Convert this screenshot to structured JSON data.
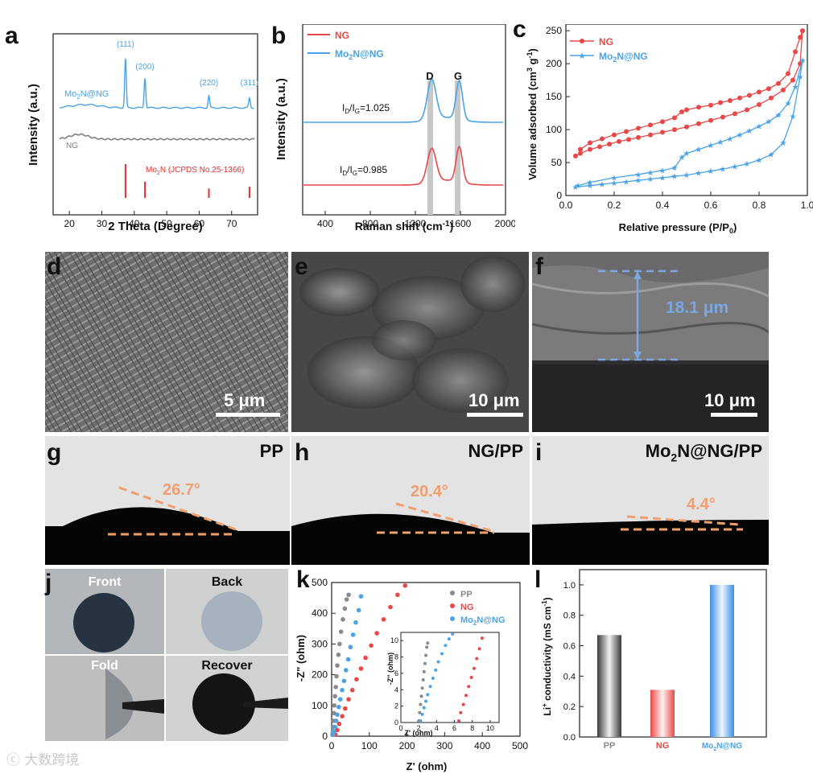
{
  "panels": {
    "a": "a",
    "b": "b",
    "c": "c",
    "d": "d",
    "e": "e",
    "f": "f",
    "g": "g",
    "h": "h",
    "i": "i",
    "j": "j",
    "k": "k",
    "l": "l"
  },
  "xrd": {
    "xlabel": "2 Theta (Degree)",
    "ylabel": "Intensity (a.u.)",
    "xticks": [
      "20",
      "30",
      "40",
      "50",
      "60",
      "70"
    ],
    "mo2n_label_pre": "Mo",
    "mo2n_label_sub": "2",
    "mo2n_label_post": "N@NG",
    "ng_label": "NG",
    "peaks": [
      "(111)",
      "(200)",
      "(220)",
      "(311)"
    ],
    "ref_pre": "Mo",
    "ref_sub": "2",
    "ref_post": "N (JCPDS No.25-1366)"
  },
  "raman": {
    "xlabel_pre": "Raman shift (cm",
    "xlabel_sup": "-1",
    "xlabel_post": ")",
    "ylabel": "Intensity (a.u.)",
    "xticks": [
      "400",
      "800",
      "1200",
      "1600",
      "2000"
    ],
    "legend_ng": "NG",
    "legend_mo_pre": "Mo",
    "legend_mo_sub": "2",
    "legend_mo_post": "N@NG",
    "d_label": "D",
    "g_label": "G",
    "ratio_top_pre": "I",
    "ratio_top_d": "D",
    "ratio_top_mid": "/I",
    "ratio_top_g": "G",
    "ratio_top_val": "=1.025",
    "ratio_bot_pre": "I",
    "ratio_bot_d": "D",
    "ratio_bot_mid": "/I",
    "ratio_bot_g": "G",
    "ratio_bot_val": "=0.985"
  },
  "bet": {
    "xlabel_pre": "Relative pressure (P/P",
    "xlabel_sub": "0",
    "xlabel_post": ")",
    "ylabel_pre": "Volume adsorbed (cm",
    "ylabel_sup1": "3",
    "ylabel_mid": " g",
    "ylabel_sup2": "-1",
    "ylabel_post": ")",
    "xticks": [
      "0.0",
      "0.2",
      "0.4",
      "0.6",
      "0.8",
      "1.0"
    ],
    "yticks": [
      "0",
      "50",
      "100",
      "150",
      "200",
      "250"
    ],
    "legend_ng": "NG",
    "legend_mo_pre": "Mo",
    "legend_mo_sub": "2",
    "legend_mo_post": "N@NG"
  },
  "sem": {
    "d_scale": "5 μm",
    "e_scale": "10 μm",
    "f_scale": "10 μm",
    "f_thickness": "18.1 μm"
  },
  "contact_angle": {
    "g_title": "PP",
    "g_angle": "26.7°",
    "h_title": "NG/PP",
    "h_angle": "20.4°",
    "i_title_pre": "Mo",
    "i_title_sub": "2",
    "i_title_post": "N@NG/PP",
    "i_angle": "4.4°"
  },
  "photos": {
    "front": "Front",
    "back": "Back",
    "fold": "Fold",
    "recover": "Recover"
  },
  "eis": {
    "xlabel": "Z' (ohm)",
    "ylabel": "-Z\" (ohm)",
    "xticks": [
      "0",
      "100",
      "200",
      "300",
      "400",
      "500"
    ],
    "yticks": [
      "0",
      "100",
      "200",
      "300",
      "400",
      "500"
    ],
    "legend_pp": "PP",
    "legend_ng": "NG",
    "legend_mo_pre": "Mo",
    "legend_mo_sub": "2",
    "legend_mo_post": "N@NG",
    "inset_xlabel": "Z' (ohm)",
    "inset_ylabel": "-Z\" (ohm)",
    "inset_xticks": [
      "0",
      "2",
      "4",
      "6",
      "8",
      "10"
    ],
    "inset_yticks": [
      "0",
      "2",
      "4",
      "6",
      "8",
      "10"
    ]
  },
  "cond": {
    "ylabel_pre": "Li",
    "ylabel_sup": "+",
    "ylabel_post": " conductivity (mS cm",
    "ylabel_sup2": "-1",
    "ylabel_end": ")",
    "yticks": [
      "0.0",
      "0.2",
      "0.4",
      "0.6",
      "0.8",
      "1.0"
    ],
    "cat_pp": "PP",
    "cat_ng": "NG",
    "cat_mo_pre": "Mo",
    "cat_mo_sub": "2",
    "cat_mo_post": "N@NG"
  },
  "watermark": "大数跨境",
  "chart_data": [
    {
      "id": "a",
      "type": "line",
      "title": "",
      "xlabel": "2 Theta (Degree)",
      "ylabel": "Intensity (a.u.)",
      "xlim": [
        15,
        78
      ],
      "series": [
        {
          "name": "Mo2N@NG",
          "color": "#4aa3e6"
        },
        {
          "name": "NG",
          "color": "#808080"
        }
      ],
      "peaks": [
        {
          "label": "(111)",
          "x": 37.3
        },
        {
          "label": "(200)",
          "x": 43.3
        },
        {
          "label": "(220)",
          "x": 63.0
        },
        {
          "label": "(311)",
          "x": 75.5
        }
      ],
      "reference": {
        "name": "Mo2N (JCPDS No.25-1366)",
        "x": [
          37.3,
          43.3,
          63.0,
          75.5
        ],
        "rel_intensity": [
          1.0,
          0.48,
          0.28,
          0.33
        ],
        "color": "#e03030"
      }
    },
    {
      "id": "b",
      "type": "line",
      "xlabel": "Raman shift (cm-1)",
      "ylabel": "Intensity (a.u.)",
      "xlim": [
        200,
        2000
      ],
      "bands": {
        "D": 1345,
        "G": 1590
      },
      "series": [
        {
          "name": "NG",
          "color": "#e84848",
          "ID_IG": 0.985
        },
        {
          "name": "Mo2N@NG",
          "color": "#4aa3e6",
          "ID_IG": 1.025
        }
      ]
    },
    {
      "id": "c",
      "type": "line",
      "xlabel": "Relative pressure (P/P0)",
      "ylabel": "Volume adsorbed (cm3 g-1)",
      "xlim": [
        0,
        1.0
      ],
      "ylim": [
        0,
        260
      ],
      "series": [
        {
          "name": "NG adsorption",
          "color": "#e84848",
          "x": [
            0.04,
            0.06,
            0.1,
            0.14,
            0.18,
            0.22,
            0.26,
            0.3,
            0.35,
            0.4,
            0.45,
            0.5,
            0.55,
            0.6,
            0.65,
            0.7,
            0.75,
            0.8,
            0.85,
            0.9,
            0.94,
            0.97,
            0.98
          ],
          "y": [
            60,
            64,
            70,
            74,
            78,
            82,
            85,
            88,
            92,
            96,
            100,
            104,
            109,
            114,
            119,
            124,
            130,
            138,
            148,
            160,
            175,
            200,
            250
          ]
        },
        {
          "name": "NG desorption",
          "color": "#e84848",
          "x": [
            0.98,
            0.97,
            0.95,
            0.92,
            0.88,
            0.84,
            0.8,
            0.76,
            0.72,
            0.68,
            0.64,
            0.6,
            0.55,
            0.5,
            0.48,
            0.45,
            0.4,
            0.35,
            0.3,
            0.25,
            0.2,
            0.15,
            0.1,
            0.06
          ],
          "y": [
            250,
            240,
            218,
            185,
            170,
            162,
            157,
            152,
            148,
            144,
            141,
            137,
            134,
            130,
            127,
            118,
            112,
            107,
            102,
            97,
            92,
            86,
            80,
            70
          ]
        },
        {
          "name": "Mo2N@NG adsorption",
          "color": "#4aa3e6",
          "x": [
            0.04,
            0.1,
            0.15,
            0.2,
            0.25,
            0.3,
            0.35,
            0.4,
            0.45,
            0.5,
            0.55,
            0.6,
            0.65,
            0.7,
            0.75,
            0.8,
            0.85,
            0.9,
            0.94,
            0.97,
            0.98
          ],
          "y": [
            13,
            15,
            17,
            19,
            21,
            23,
            25,
            27,
            29,
            31,
            34,
            37,
            40,
            44,
            48,
            54,
            62,
            80,
            120,
            180,
            205
          ]
        },
        {
          "name": "Mo2N@NG desorption",
          "color": "#4aa3e6",
          "x": [
            0.98,
            0.95,
            0.92,
            0.88,
            0.84,
            0.8,
            0.76,
            0.72,
            0.68,
            0.64,
            0.6,
            0.55,
            0.5,
            0.48,
            0.45,
            0.4,
            0.35,
            0.3,
            0.2,
            0.1,
            0.05
          ],
          "y": [
            205,
            165,
            140,
            122,
            112,
            105,
            98,
            92,
            86,
            81,
            76,
            70,
            64,
            58,
            42,
            38,
            35,
            32,
            27,
            20,
            15
          ]
        }
      ]
    },
    {
      "id": "k",
      "type": "scatter",
      "xlabel": "Z' (ohm)",
      "ylabel": "-Z\" (ohm)",
      "xlim": [
        0,
        500
      ],
      "ylim": [
        0,
        500
      ],
      "series": [
        {
          "name": "PP",
          "color": "#8a8a8a",
          "x": [
            2,
            3,
            4,
            5,
            6,
            7,
            9,
            11,
            13,
            15,
            18,
            21,
            25,
            30,
            35,
            40,
            45
          ],
          "y": [
            5,
            15,
            30,
            50,
            75,
            100,
            130,
            160,
            195,
            230,
            265,
            300,
            340,
            380,
            415,
            445,
            460
          ]
        },
        {
          "name": "NG",
          "color": "#e84848",
          "x": [
            10,
            15,
            20,
            28,
            36,
            45,
            55,
            66,
            78,
            90,
            105,
            120,
            138,
            156,
            175,
            195
          ],
          "y": [
            5,
            20,
            40,
            65,
            90,
            120,
            150,
            185,
            220,
            255,
            295,
            335,
            380,
            420,
            460,
            490
          ]
        },
        {
          "name": "Mo2N@NG",
          "color": "#4aa3e6",
          "x": [
            4,
            6,
            9,
            12,
            15,
            19,
            23,
            28,
            33,
            38,
            44,
            50,
            57,
            64,
            72,
            78
          ],
          "y": [
            5,
            15,
            30,
            50,
            70,
            95,
            120,
            150,
            180,
            215,
            250,
            290,
            330,
            370,
            410,
            455
          ]
        }
      ],
      "inset": {
        "xlim": [
          0,
          11
        ],
        "ylim": [
          0,
          11
        ],
        "series": [
          {
            "name": "PP",
            "x": [
              2.0,
              2.1,
              2.2,
              2.3,
              2.4,
              2.5,
              2.6,
              2.7,
              2.8,
              2.9,
              3.0
            ],
            "y": [
              0.2,
              1.2,
              2.2,
              3.2,
              4.2,
              5.2,
              6.2,
              7.2,
              8.2,
              9.2,
              9.7
            ]
          },
          {
            "name": "Mo2N@NG",
            "x": [
              2.2,
              2.4,
              2.6,
              2.8,
              3.0,
              3.3,
              3.6,
              3.9,
              4.2,
              4.6,
              5.0,
              5.4,
              5.8
            ],
            "y": [
              0.2,
              1.0,
              1.8,
              2.6,
              3.4,
              4.4,
              5.4,
              6.4,
              7.4,
              8.4,
              9.4,
              10.2,
              10.8
            ]
          },
          {
            "name": "NG",
            "x": [
              6.5,
              6.7,
              7.0,
              7.3,
              7.6,
              7.9,
              8.2,
              8.5,
              8.8,
              9.1
            ],
            "y": [
              0.2,
              1.2,
              2.2,
              3.3,
              4.4,
              5.5,
              6.6,
              7.8,
              9.0,
              10.3
            ]
          }
        ]
      }
    },
    {
      "id": "l",
      "type": "bar",
      "ylabel": "Li+ conductivity (mS cm-1)",
      "ylim": [
        0,
        1.1
      ],
      "categories": [
        "PP",
        "NG",
        "Mo2N@NG"
      ],
      "values": [
        0.67,
        0.31,
        1.0
      ],
      "colors": [
        "#8a8a8a",
        "#e84848",
        "#4aa3e6"
      ]
    }
  ]
}
